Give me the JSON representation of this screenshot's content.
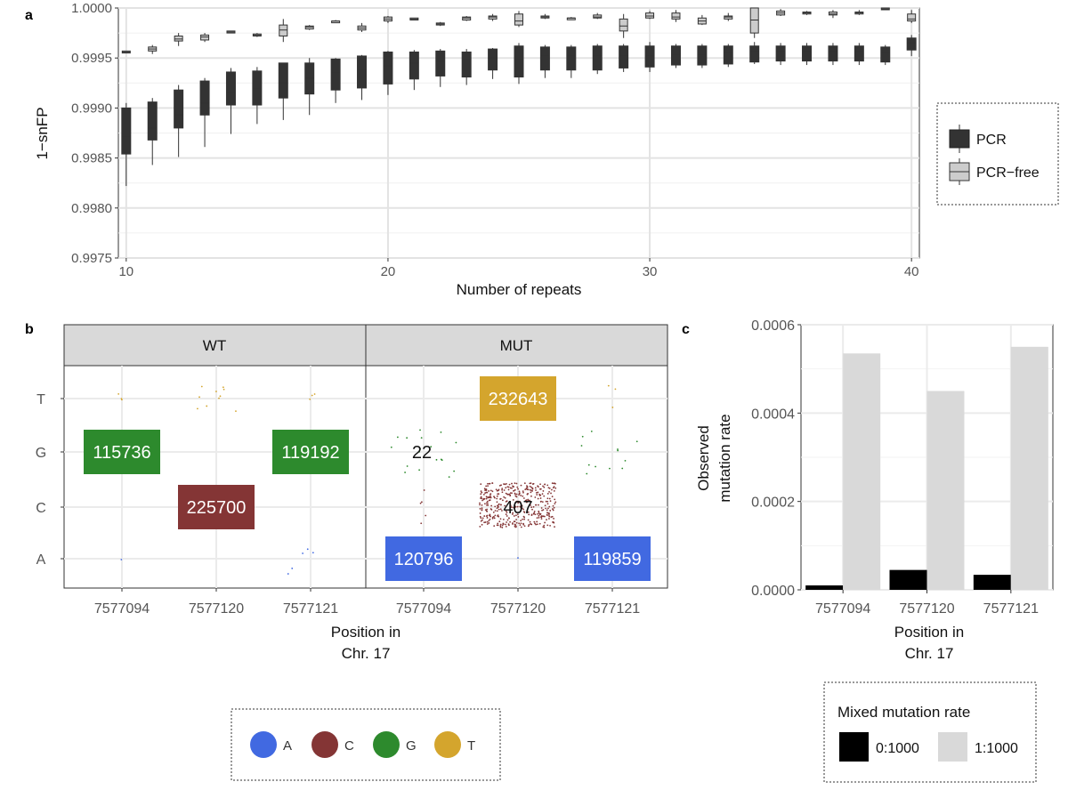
{
  "chart_data": [
    {
      "panel": "a",
      "type": "box",
      "ylabel": "1−snFP",
      "xlabel": "Number of repeats",
      "x_ticks": [
        "10",
        "20",
        "30",
        "40"
      ],
      "y_ticks": [
        "0.9975",
        "0.9980",
        "0.9985",
        "0.9990",
        "0.9995",
        "1.0000"
      ],
      "xlim": [
        9.7,
        40.3
      ],
      "ylim": [
        0.9975,
        1.0
      ],
      "grid": true,
      "legend_position": "right",
      "series": [
        {
          "name": "PCR",
          "color": "#333333",
          "boxes": [
            {
              "x": 10,
              "min": 0.99822,
              "q1": 0.99854,
              "median": 0.99872,
              "q3": 0.999,
              "max": 0.99905
            },
            {
              "x": 11,
              "min": 0.99843,
              "q1": 0.99868,
              "median": 0.9988,
              "q3": 0.99906,
              "max": 0.9991
            },
            {
              "x": 12,
              "min": 0.99851,
              "q1": 0.9988,
              "median": 0.99893,
              "q3": 0.99918,
              "max": 0.99923
            },
            {
              "x": 13,
              "min": 0.99861,
              "q1": 0.99893,
              "median": 0.99905,
              "q3": 0.99927,
              "max": 0.9993
            },
            {
              "x": 14,
              "min": 0.99874,
              "q1": 0.99903,
              "median": 0.99915,
              "q3": 0.99936,
              "max": 0.9994
            },
            {
              "x": 15,
              "min": 0.99884,
              "q1": 0.99903,
              "median": 0.9992,
              "q3": 0.99937,
              "max": 0.99941
            },
            {
              "x": 16,
              "min": 0.99888,
              "q1": 0.9991,
              "median": 0.99925,
              "q3": 0.99945,
              "max": 0.99945
            },
            {
              "x": 17,
              "min": 0.99893,
              "q1": 0.99914,
              "median": 0.9993,
              "q3": 0.99945,
              "max": 0.9995
            },
            {
              "x": 18,
              "min": 0.99905,
              "q1": 0.99918,
              "median": 0.99935,
              "q3": 0.99949,
              "max": 0.9995
            },
            {
              "x": 19,
              "min": 0.99908,
              "q1": 0.9992,
              "median": 0.99938,
              "q3": 0.99952,
              "max": 0.99953
            },
            {
              "x": 20,
              "min": 0.99913,
              "q1": 0.99924,
              "median": 0.99942,
              "q3": 0.99956,
              "max": 0.99957
            },
            {
              "x": 21,
              "min": 0.99918,
              "q1": 0.99929,
              "median": 0.99945,
              "q3": 0.99956,
              "max": 0.99958
            },
            {
              "x": 22,
              "min": 0.99921,
              "q1": 0.99932,
              "median": 0.99947,
              "q3": 0.99957,
              "max": 0.99959
            },
            {
              "x": 23,
              "min": 0.99923,
              "q1": 0.99931,
              "median": 0.99948,
              "q3": 0.99956,
              "max": 0.99959
            },
            {
              "x": 24,
              "min": 0.99929,
              "q1": 0.99938,
              "median": 0.9995,
              "q3": 0.99959,
              "max": 0.9996
            },
            {
              "x": 25,
              "min": 0.99924,
              "q1": 0.99931,
              "median": 0.99948,
              "q3": 0.99962,
              "max": 0.99965
            },
            {
              "x": 26,
              "min": 0.9993,
              "q1": 0.99938,
              "median": 0.99952,
              "q3": 0.99961,
              "max": 0.99963
            },
            {
              "x": 27,
              "min": 0.9993,
              "q1": 0.99938,
              "median": 0.99952,
              "q3": 0.99961,
              "max": 0.99963
            },
            {
              "x": 28,
              "min": 0.99934,
              "q1": 0.99938,
              "median": 0.99952,
              "q3": 0.99962,
              "max": 0.99964
            },
            {
              "x": 29,
              "min": 0.99936,
              "q1": 0.9994,
              "median": 0.99952,
              "q3": 0.99962,
              "max": 0.99964
            },
            {
              "x": 30,
              "min": 0.99936,
              "q1": 0.99941,
              "median": 0.99952,
              "q3": 0.99962,
              "max": 0.99966
            },
            {
              "x": 31,
              "min": 0.9994,
              "q1": 0.99943,
              "median": 0.99954,
              "q3": 0.99962,
              "max": 0.99964
            },
            {
              "x": 32,
              "min": 0.9994,
              "q1": 0.99943,
              "median": 0.99954,
              "q3": 0.99962,
              "max": 0.99964
            },
            {
              "x": 33,
              "min": 0.99941,
              "q1": 0.99944,
              "median": 0.99955,
              "q3": 0.99962,
              "max": 0.99964
            },
            {
              "x": 34,
              "min": 0.99944,
              "q1": 0.99946,
              "median": 0.99956,
              "q3": 0.99962,
              "max": 0.99966
            },
            {
              "x": 35,
              "min": 0.99943,
              "q1": 0.99947,
              "median": 0.99956,
              "q3": 0.99962,
              "max": 0.99965
            },
            {
              "x": 36,
              "min": 0.99943,
              "q1": 0.99947,
              "median": 0.99956,
              "q3": 0.99962,
              "max": 0.99965
            },
            {
              "x": 37,
              "min": 0.99943,
              "q1": 0.99947,
              "median": 0.99956,
              "q3": 0.99962,
              "max": 0.99965
            },
            {
              "x": 38,
              "min": 0.99943,
              "q1": 0.99947,
              "median": 0.99956,
              "q3": 0.99962,
              "max": 0.99965
            },
            {
              "x": 39,
              "min": 0.99943,
              "q1": 0.99946,
              "median": 0.99955,
              "q3": 0.99961,
              "max": 0.99963
            },
            {
              "x": 40,
              "min": 0.99952,
              "q1": 0.99958,
              "median": 0.99965,
              "q3": 0.9997,
              "max": 0.99973
            }
          ]
        },
        {
          "name": "PCR−free",
          "color": "#cccccc",
          "boxes": [
            {
              "x": 10,
              "min": 0.99955,
              "q1": 0.99955,
              "median": 0.99956,
              "q3": 0.99957,
              "max": 0.99957
            },
            {
              "x": 11,
              "min": 0.99954,
              "q1": 0.99957,
              "median": 0.99959,
              "q3": 0.99961,
              "max": 0.99963
            },
            {
              "x": 12,
              "min": 0.99962,
              "q1": 0.99967,
              "median": 0.99969,
              "q3": 0.99972,
              "max": 0.99975
            },
            {
              "x": 13,
              "min": 0.99966,
              "q1": 0.99968,
              "median": 0.99971,
              "q3": 0.99973,
              "max": 0.99975
            },
            {
              "x": 14,
              "min": 0.99975,
              "q1": 0.99975,
              "median": 0.99976,
              "q3": 0.99977,
              "max": 0.99977
            },
            {
              "x": 15,
              "min": 0.99971,
              "q1": 0.99972,
              "median": 0.99973,
              "q3": 0.99974,
              "max": 0.99975
            },
            {
              "x": 16,
              "min": 0.99966,
              "q1": 0.99972,
              "median": 0.99978,
              "q3": 0.99983,
              "max": 0.99989
            },
            {
              "x": 17,
              "min": 0.99978,
              "q1": 0.99979,
              "median": 0.99981,
              "q3": 0.99982,
              "max": 0.99983
            },
            {
              "x": 18,
              "min": 0.99985,
              "q1": 0.99986,
              "median": 0.99987,
              "q3": 0.99987,
              "max": 0.99988
            },
            {
              "x": 19,
              "min": 0.99976,
              "q1": 0.99978,
              "median": 0.9998,
              "q3": 0.99982,
              "max": 0.99985
            },
            {
              "x": 20,
              "min": 0.99985,
              "q1": 0.99987,
              "median": 0.99989,
              "q3": 0.99991,
              "max": 0.99992
            },
            {
              "x": 21,
              "min": 0.99988,
              "q1": 0.99988,
              "median": 0.99989,
              "q3": 0.9999,
              "max": 0.9999
            },
            {
              "x": 22,
              "min": 0.99982,
              "q1": 0.99983,
              "median": 0.99984,
              "q3": 0.99985,
              "max": 0.99986
            },
            {
              "x": 23,
              "min": 0.99987,
              "q1": 0.99988,
              "median": 0.9999,
              "q3": 0.99991,
              "max": 0.99992
            },
            {
              "x": 24,
              "min": 0.99987,
              "q1": 0.99989,
              "median": 0.99991,
              "q3": 0.99992,
              "max": 0.99994
            },
            {
              "x": 25,
              "min": 0.99981,
              "q1": 0.99983,
              "median": 0.99987,
              "q3": 0.99994,
              "max": 0.99997
            },
            {
              "x": 26,
              "min": 0.99989,
              "q1": 0.9999,
              "median": 0.99991,
              "q3": 0.99992,
              "max": 0.99994
            },
            {
              "x": 27,
              "min": 0.99989,
              "q1": 0.99989,
              "median": 0.9999,
              "q3": 0.9999,
              "max": 0.99991
            },
            {
              "x": 28,
              "min": 0.99989,
              "q1": 0.9999,
              "median": 0.99991,
              "q3": 0.99993,
              "max": 0.99995
            },
            {
              "x": 29,
              "min": 0.9997,
              "q1": 0.99977,
              "median": 0.99982,
              "q3": 0.99989,
              "max": 0.99994
            },
            {
              "x": 30,
              "min": 0.99989,
              "q1": 0.9999,
              "median": 0.99992,
              "q3": 0.99995,
              "max": 0.99997
            },
            {
              "x": 31,
              "min": 0.99986,
              "q1": 0.99989,
              "median": 0.99991,
              "q3": 0.99995,
              "max": 0.99998
            },
            {
              "x": 32,
              "min": 0.99983,
              "q1": 0.99984,
              "median": 0.99987,
              "q3": 0.9999,
              "max": 0.99993
            },
            {
              "x": 33,
              "min": 0.99987,
              "q1": 0.99989,
              "median": 0.99991,
              "q3": 0.99992,
              "max": 0.99995
            },
            {
              "x": 34,
              "min": 0.9997,
              "q1": 0.99975,
              "median": 0.99988,
              "q3": 1.0,
              "max": 1.0
            },
            {
              "x": 35,
              "min": 0.99992,
              "q1": 0.99993,
              "median": 0.99995,
              "q3": 0.99997,
              "max": 0.99999
            },
            {
              "x": 36,
              "min": 0.99993,
              "q1": 0.99994,
              "median": 0.99995,
              "q3": 0.99996,
              "max": 0.99997
            },
            {
              "x": 37,
              "min": 0.9999,
              "q1": 0.99993,
              "median": 0.99994,
              "q3": 0.99996,
              "max": 0.99998
            },
            {
              "x": 38,
              "min": 0.99993,
              "q1": 0.99994,
              "median": 0.99995,
              "q3": 0.99996,
              "max": 0.99998
            },
            {
              "x": 39,
              "min": 0.99998,
              "q1": 0.99999,
              "median": 0.99999,
              "q3": 1.0,
              "max": 1.0
            },
            {
              "x": 40,
              "min": 0.99985,
              "q1": 0.99987,
              "median": 0.99989,
              "q3": 0.99994,
              "max": 0.99998
            }
          ]
        }
      ]
    },
    {
      "panel": "b",
      "type": "table",
      "facets": [
        "WT",
        "MUT"
      ],
      "x_ticks": [
        "7577094",
        "7577120",
        "7577121"
      ],
      "y_ticks": [
        "T",
        "G",
        "C",
        "A"
      ],
      "xlabel": "Position in\nChr. 17",
      "labels": [
        {
          "facet": "WT",
          "position": "7577094",
          "base": "G",
          "count": "115736",
          "color": "#2d8a2d"
        },
        {
          "facet": "WT",
          "position": "7577120",
          "base": "C",
          "count": "225700",
          "color": "#843535"
        },
        {
          "facet": "WT",
          "position": "7577121",
          "base": "G",
          "count": "119192",
          "color": "#2d8a2d"
        },
        {
          "facet": "MUT",
          "position": "7577120",
          "base": "T",
          "count": "232643",
          "color": "#d4a52d"
        },
        {
          "facet": "MUT",
          "position": "7577094",
          "base": "G",
          "count": "22",
          "color": ""
        },
        {
          "facet": "MUT",
          "position": "7577120",
          "base": "C",
          "count": "407",
          "color": ""
        },
        {
          "facet": "MUT",
          "position": "7577094",
          "base": "A",
          "count": "120796",
          "color": "#4169e1"
        },
        {
          "facet": "MUT",
          "position": "7577121",
          "base": "A",
          "count": "119859",
          "color": "#4169e1"
        }
      ],
      "legend": [
        {
          "name": "A",
          "color": "#4169e1"
        },
        {
          "name": "C",
          "color": "#843535"
        },
        {
          "name": "G",
          "color": "#2d8a2d"
        },
        {
          "name": "T",
          "color": "#d4a52d"
        }
      ]
    },
    {
      "panel": "c",
      "type": "bar",
      "ylabel": "Observed\nmutation rate",
      "xlabel": "Position in\nChr. 17",
      "categories": [
        "7577094",
        "7577120",
        "7577121"
      ],
      "y_ticks": [
        "0.0000",
        "0.0002",
        "0.0004",
        "0.0006"
      ],
      "ylim": [
        0,
        0.0006
      ],
      "series": [
        {
          "name": "0:1000",
          "color": "#000000",
          "values": [
            1e-05,
            4.5e-05,
            3.4e-05
          ]
        },
        {
          "name": "1:1000",
          "color": "#d9d9d9",
          "values": [
            0.000535,
            0.00045,
            0.00055
          ]
        }
      ],
      "legend_title": "Mixed mutation rate",
      "legend_position": "bottom"
    }
  ],
  "panel_labels": [
    "a",
    "b",
    "c"
  ]
}
